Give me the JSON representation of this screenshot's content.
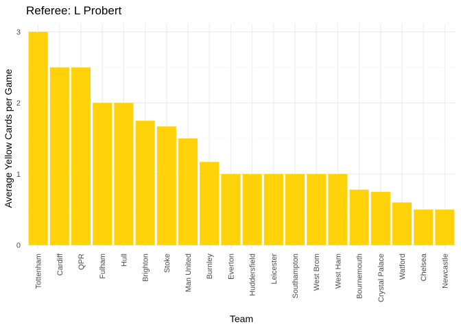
{
  "chart_data": {
    "type": "bar",
    "title": "Referee: L Probert",
    "xlabel": "Team",
    "ylabel": "Average Yellow Cards per Game",
    "categories": [
      "Tottenham",
      "Cardiff",
      "QPR",
      "Fulham",
      "Hull",
      "Brighton",
      "Stoke",
      "Man United",
      "Burnley",
      "Everton",
      "Huddersfield",
      "Leicester",
      "Southampton",
      "West Brom",
      "West Ham",
      "Bournemouth",
      "Crystal Palace",
      "Watford",
      "Chelsea",
      "Newcastle"
    ],
    "values": [
      3.0,
      2.5,
      2.5,
      2.0,
      2.0,
      1.75,
      1.67,
      1.5,
      1.17,
      1.0,
      1.0,
      1.0,
      1.0,
      1.0,
      1.0,
      0.78,
      0.75,
      0.6,
      0.5,
      0.5
    ],
    "ylim": [
      0,
      3.15
    ],
    "yticks": [
      0,
      1,
      2,
      3
    ],
    "grid": true,
    "legend": "none",
    "colors": {
      "bar": "#FFD20A",
      "grid_major": "#EBEBEB",
      "grid_minor": "#F5F5F5",
      "tick_text": "#4D4D4D",
      "text": "#000000"
    }
  }
}
